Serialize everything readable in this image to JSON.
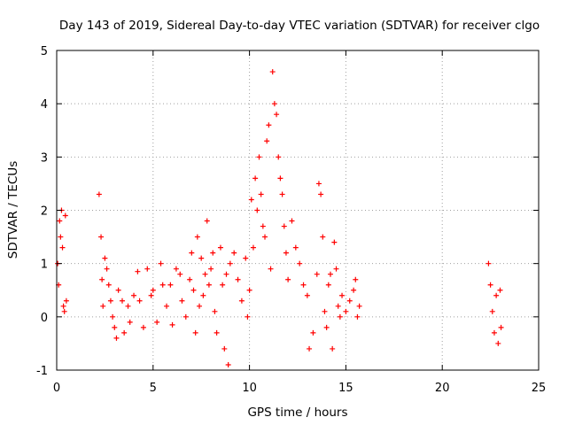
{
  "chart_data": {
    "type": "scatter",
    "title": "Day 143 of 2019, Sidereal Day-to-day VTEC variation (SDTVAR) for receiver clgo",
    "xlabel": "GPS time / hours",
    "ylabel": "SDTVAR / TECUs",
    "xlim": [
      0,
      25
    ],
    "ylim": [
      -1,
      5
    ],
    "xticks": [
      "0",
      "5",
      "10",
      "15",
      "20",
      "25"
    ],
    "yticks": [
      "-1",
      "0",
      "1",
      "2",
      "3",
      "4",
      "5"
    ],
    "grid": true,
    "marker": "+",
    "color": "#ff0000",
    "series": [
      {
        "name": "clgo",
        "points": [
          [
            0.05,
            1.0
          ],
          [
            0.1,
            0.6
          ],
          [
            0.15,
            1.8
          ],
          [
            0.2,
            1.5
          ],
          [
            0.25,
            2.0
          ],
          [
            0.3,
            1.3
          ],
          [
            0.35,
            0.2
          ],
          [
            0.4,
            0.1
          ],
          [
            0.45,
            1.9
          ],
          [
            0.5,
            0.3
          ],
          [
            2.2,
            2.3
          ],
          [
            2.3,
            1.5
          ],
          [
            2.35,
            0.7
          ],
          [
            2.4,
            0.2
          ],
          [
            2.5,
            1.1
          ],
          [
            2.6,
            0.9
          ],
          [
            2.7,
            0.6
          ],
          [
            2.8,
            0.3
          ],
          [
            2.9,
            0.0
          ],
          [
            3.0,
            -0.2
          ],
          [
            3.1,
            -0.4
          ],
          [
            3.2,
            0.5
          ],
          [
            3.4,
            0.3
          ],
          [
            3.5,
            -0.3
          ],
          [
            3.7,
            0.2
          ],
          [
            3.8,
            -0.1
          ],
          [
            4.0,
            0.4
          ],
          [
            4.2,
            0.85
          ],
          [
            4.3,
            0.3
          ],
          [
            4.5,
            -0.2
          ],
          [
            4.7,
            0.9
          ],
          [
            4.9,
            0.4
          ],
          [
            5.0,
            0.5
          ],
          [
            5.2,
            -0.1
          ],
          [
            5.4,
            1.0
          ],
          [
            5.5,
            0.6
          ],
          [
            5.7,
            0.2
          ],
          [
            5.9,
            0.6
          ],
          [
            6.0,
            -0.15
          ],
          [
            6.2,
            0.9
          ],
          [
            6.4,
            0.8
          ],
          [
            6.5,
            0.3
          ],
          [
            6.7,
            0.0
          ],
          [
            6.9,
            0.7
          ],
          [
            7.0,
            1.2
          ],
          [
            7.1,
            0.5
          ],
          [
            7.2,
            -0.3
          ],
          [
            7.3,
            1.5
          ],
          [
            7.4,
            0.2
          ],
          [
            7.5,
            1.1
          ],
          [
            7.6,
            0.4
          ],
          [
            7.7,
            0.8
          ],
          [
            7.8,
            1.8
          ],
          [
            7.9,
            0.6
          ],
          [
            8.0,
            0.9
          ],
          [
            8.1,
            1.2
          ],
          [
            8.2,
            0.1
          ],
          [
            8.3,
            -0.3
          ],
          [
            8.5,
            1.3
          ],
          [
            8.6,
            0.6
          ],
          [
            8.7,
            -0.6
          ],
          [
            8.8,
            0.8
          ],
          [
            8.9,
            -0.9
          ],
          [
            9.0,
            1.0
          ],
          [
            9.2,
            1.2
          ],
          [
            9.4,
            0.7
          ],
          [
            9.6,
            0.3
          ],
          [
            9.8,
            1.1
          ],
          [
            9.9,
            0.0
          ],
          [
            10.0,
            0.5
          ],
          [
            10.1,
            2.2
          ],
          [
            10.2,
            1.3
          ],
          [
            10.3,
            2.6
          ],
          [
            10.4,
            2.0
          ],
          [
            10.5,
            3.0
          ],
          [
            10.6,
            2.3
          ],
          [
            10.7,
            1.7
          ],
          [
            10.8,
            1.5
          ],
          [
            10.9,
            3.3
          ],
          [
            11.0,
            3.6
          ],
          [
            11.1,
            0.9
          ],
          [
            11.2,
            4.6
          ],
          [
            11.3,
            4.0
          ],
          [
            11.4,
            3.8
          ],
          [
            11.5,
            3.0
          ],
          [
            11.6,
            2.6
          ],
          [
            11.7,
            2.3
          ],
          [
            11.8,
            1.7
          ],
          [
            11.9,
            1.2
          ],
          [
            12.0,
            0.7
          ],
          [
            12.2,
            1.8
          ],
          [
            12.4,
            1.3
          ],
          [
            12.6,
            1.0
          ],
          [
            12.8,
            0.6
          ],
          [
            13.0,
            0.4
          ],
          [
            13.1,
            -0.6
          ],
          [
            13.3,
            -0.3
          ],
          [
            13.5,
            0.8
          ],
          [
            13.6,
            2.5
          ],
          [
            13.7,
            2.3
          ],
          [
            13.8,
            1.5
          ],
          [
            13.9,
            0.1
          ],
          [
            14.0,
            -0.2
          ],
          [
            14.1,
            0.6
          ],
          [
            14.2,
            0.8
          ],
          [
            14.3,
            -0.6
          ],
          [
            14.4,
            1.4
          ],
          [
            14.5,
            0.9
          ],
          [
            14.6,
            0.2
          ],
          [
            14.7,
            0.0
          ],
          [
            14.8,
            0.4
          ],
          [
            15.0,
            0.1
          ],
          [
            15.2,
            0.3
          ],
          [
            15.4,
            0.5
          ],
          [
            15.5,
            0.7
          ],
          [
            15.6,
            0.0
          ],
          [
            15.7,
            0.2
          ],
          [
            22.4,
            1.0
          ],
          [
            22.5,
            0.6
          ],
          [
            22.6,
            0.1
          ],
          [
            22.7,
            -0.3
          ],
          [
            22.8,
            0.4
          ],
          [
            22.9,
            -0.5
          ],
          [
            23.0,
            0.5
          ],
          [
            23.05,
            -0.2
          ]
        ]
      }
    ]
  }
}
